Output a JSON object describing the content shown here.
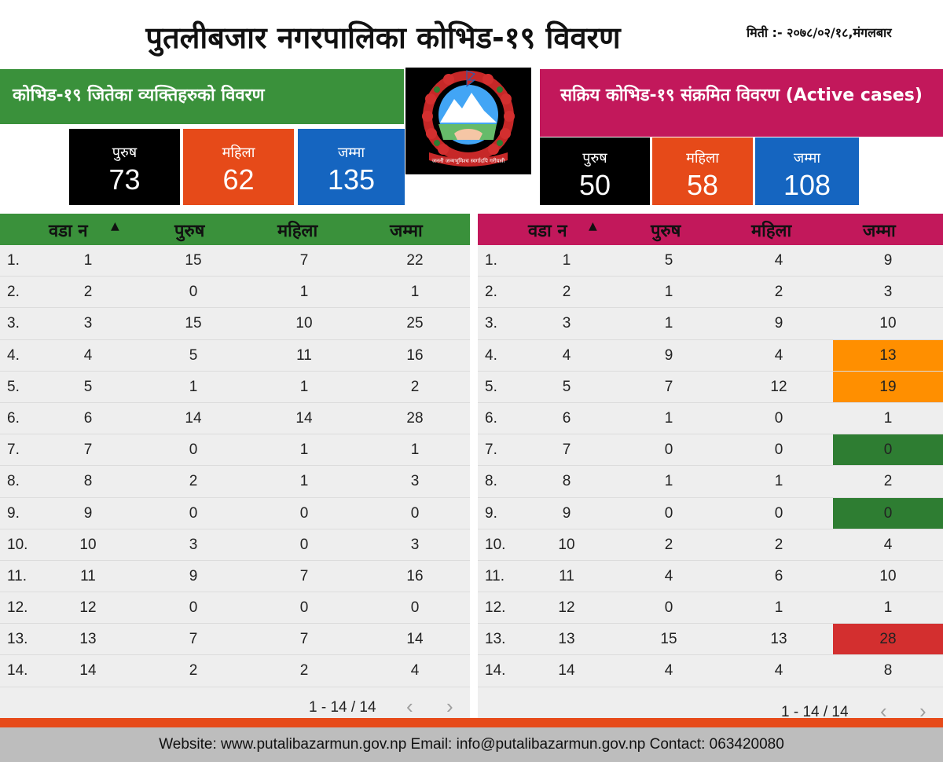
{
  "header": {
    "title": "पुतलीबजार नगरपालिका कोभिड-१९ विवरण",
    "date": "मिती :- २०७८/०२/१८,मंगलबार"
  },
  "recovered": {
    "banner": "कोभिड-१९ जितेका व्यक्तिहरुको  विवरण",
    "male_label": "पुरुष",
    "male": "73",
    "female_label": "महिला",
    "female": "62",
    "total_label": "जम्मा",
    "total": "135"
  },
  "active": {
    "banner": "सक्रिय  कोभिड-१९ संक्रमित  विवरण (Active cases)",
    "male_label": "पुरुष",
    "male": "50",
    "female_label": "महिला",
    "female": "58",
    "total_label": "जम्मा",
    "total": "108"
  },
  "emblem": {
    "motto": "जननी जन्मभूमिश्च स्वर्गादपि गरीयसी"
  },
  "colors": {
    "green": "#3a913b",
    "magenta": "#c2185b",
    "orange_hl": "#ff8f00",
    "green_hl": "#2e7d32",
    "red_hl": "#d32f2f"
  },
  "table_left": {
    "headers": [
      "वडा न",
      "पुरुष",
      "महिला",
      "जम्मा"
    ],
    "sort_icon": "sort-asc-icon",
    "rows": [
      [
        "1.",
        "1",
        "15",
        "7",
        "22"
      ],
      [
        "2.",
        "2",
        "0",
        "1",
        "1"
      ],
      [
        "3.",
        "3",
        "15",
        "10",
        "25"
      ],
      [
        "4.",
        "4",
        "5",
        "11",
        "16"
      ],
      [
        "5.",
        "5",
        "1",
        "1",
        "2"
      ],
      [
        "6.",
        "6",
        "14",
        "14",
        "28"
      ],
      [
        "7.",
        "7",
        "0",
        "1",
        "1"
      ],
      [
        "8.",
        "8",
        "2",
        "1",
        "3"
      ],
      [
        "9.",
        "9",
        "0",
        "0",
        "0"
      ],
      [
        "10.",
        "10",
        "3",
        "0",
        "3"
      ],
      [
        "11.",
        "11",
        "9",
        "7",
        "16"
      ],
      [
        "12.",
        "12",
        "0",
        "0",
        "0"
      ],
      [
        "13.",
        "13",
        "7",
        "7",
        "14"
      ],
      [
        "14.",
        "14",
        "2",
        "2",
        "4"
      ]
    ],
    "pager": "1 - 14 / 14"
  },
  "table_right": {
    "headers": [
      "वडा न",
      "पुरुष",
      "महिला",
      "जम्मा"
    ],
    "sort_icon": "sort-asc-icon",
    "rows": [
      [
        "1.",
        "1",
        "5",
        "4",
        "9"
      ],
      [
        "2.",
        "2",
        "1",
        "2",
        "3"
      ],
      [
        "3.",
        "3",
        "1",
        "9",
        "10"
      ],
      [
        "4.",
        "4",
        "9",
        "4",
        "13"
      ],
      [
        "5.",
        "5",
        "7",
        "12",
        "19"
      ],
      [
        "6.",
        "6",
        "1",
        "0",
        "1"
      ],
      [
        "7.",
        "7",
        "0",
        "0",
        "0"
      ],
      [
        "8.",
        "8",
        "1",
        "1",
        "2"
      ],
      [
        "9.",
        "9",
        "0",
        "0",
        "0"
      ],
      [
        "10.",
        "10",
        "2",
        "2",
        "4"
      ],
      [
        "11.",
        "11",
        "4",
        "6",
        "10"
      ],
      [
        "12.",
        "12",
        "0",
        "1",
        "1"
      ],
      [
        "13.",
        "13",
        "15",
        "13",
        "28"
      ],
      [
        "14.",
        "14",
        "4",
        "4",
        "8"
      ]
    ],
    "highlights": [
      "",
      "",
      "",
      "orange",
      "orange",
      "",
      "green",
      "",
      "green",
      "",
      "",
      "",
      "red",
      ""
    ],
    "pager": "1 - 14 / 14"
  },
  "footer": {
    "text": "Website: www.putalibazarmun.gov.np Email: info@putalibazarmun.gov.np  Contact: 063420080"
  }
}
